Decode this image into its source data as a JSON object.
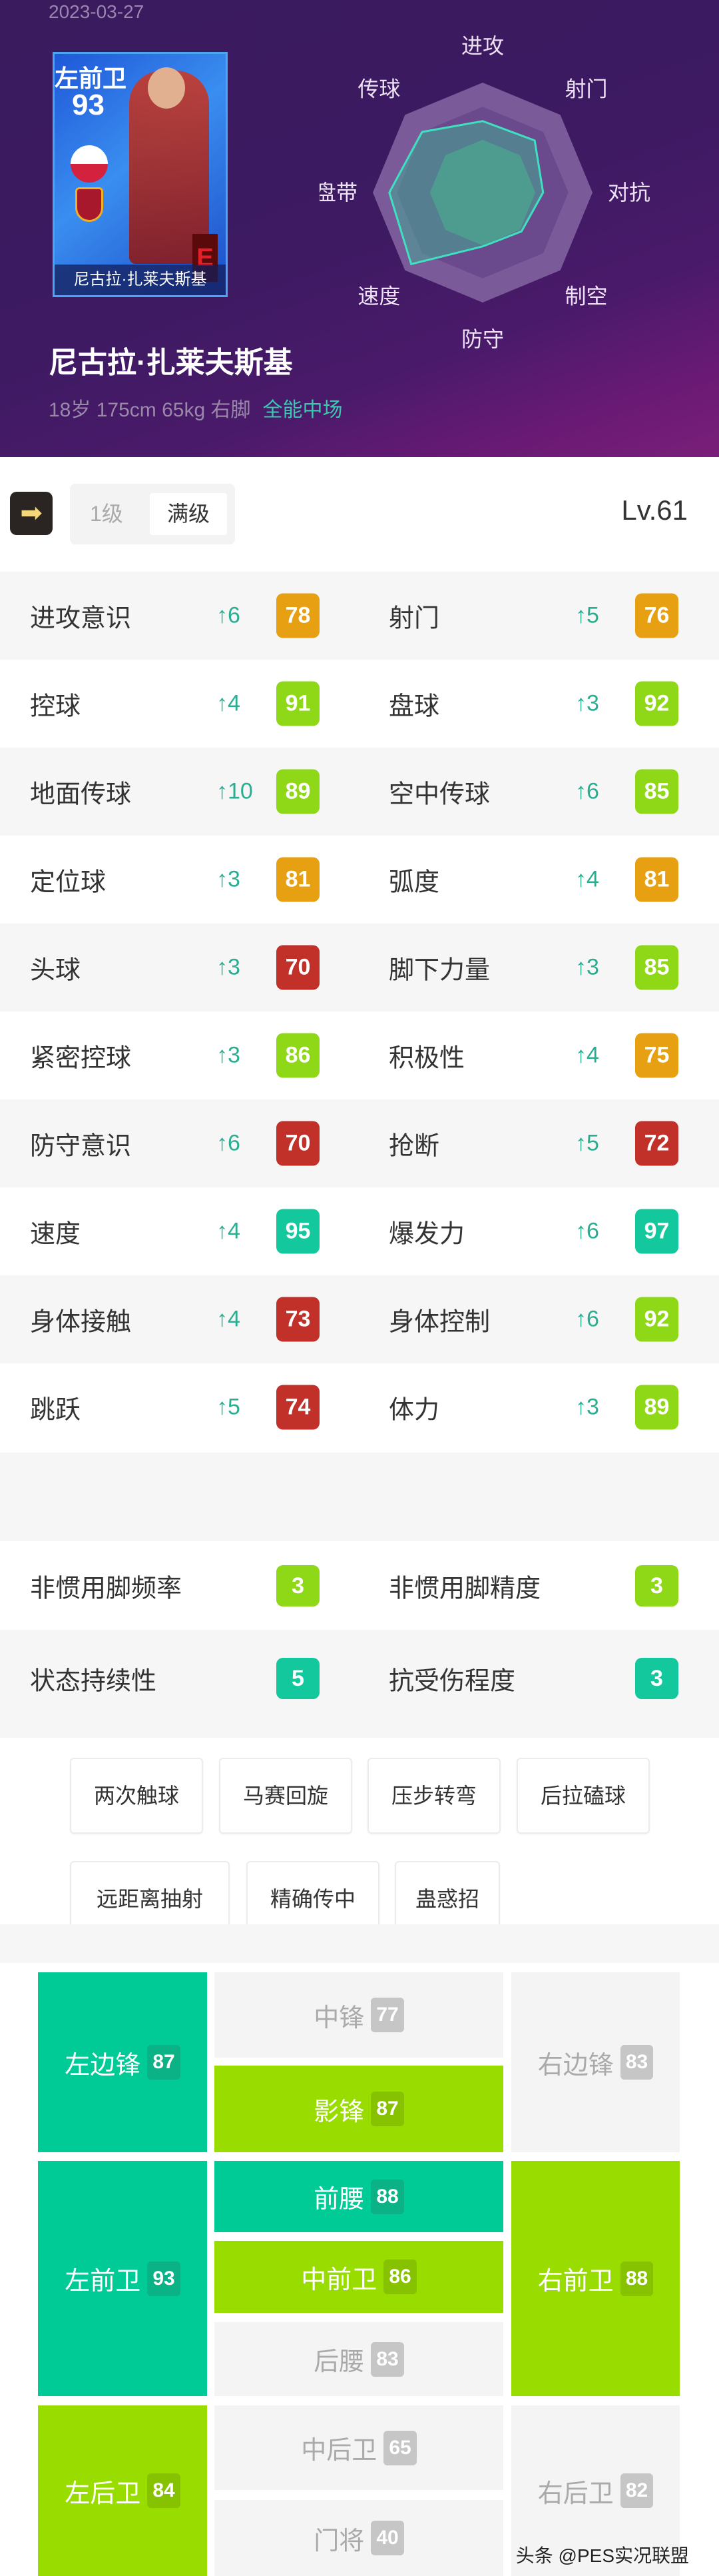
{
  "header": {
    "date": "2023-03-27",
    "card": {
      "position": "左前卫",
      "rating": "93",
      "grade": "E",
      "name": "尼古拉·扎莱夫斯基"
    },
    "player_name": "尼古拉·扎莱夫斯基",
    "info": "18岁 175cm 65kg 右脚",
    "role": "全能中场"
  },
  "chart_data": {
    "type": "radar",
    "axes": [
      "进攻",
      "射门",
      "对抗",
      "制空",
      "防守",
      "速度",
      "盘带",
      "传球"
    ],
    "values": [
      65,
      67,
      55,
      50,
      49,
      92,
      85,
      78
    ],
    "range": [
      0,
      100
    ],
    "colors": {
      "outer": "#7b5a9a",
      "mid": "#6a4a8c",
      "inner": "#5a8a8a",
      "fill": "rgba(70,170,150,0.55)",
      "stroke": "#3ee0c0"
    }
  },
  "toolbar": {
    "level_1": "1级",
    "level_max": "满级",
    "selected": "满级",
    "level": "Lv.61"
  },
  "colors": {
    "orange": "#e6a012",
    "green": "#8fd817",
    "red": "#c2302a",
    "teal": "#14c89e"
  },
  "stats": [
    [
      {
        "label": "进攻意识",
        "delta": "↑6",
        "value": "78",
        "color": "orange"
      },
      {
        "label": "射门",
        "delta": "↑5",
        "value": "76",
        "color": "orange"
      }
    ],
    [
      {
        "label": "控球",
        "delta": "↑4",
        "value": "91",
        "color": "green"
      },
      {
        "label": "盘球",
        "delta": "↑3",
        "value": "92",
        "color": "green"
      }
    ],
    [
      {
        "label": "地面传球",
        "delta": "↑10",
        "value": "89",
        "color": "green"
      },
      {
        "label": "空中传球",
        "delta": "↑6",
        "value": "85",
        "color": "green"
      }
    ],
    [
      {
        "label": "定位球",
        "delta": "↑3",
        "value": "81",
        "color": "orange"
      },
      {
        "label": "弧度",
        "delta": "↑4",
        "value": "81",
        "color": "orange"
      }
    ],
    [
      {
        "label": "头球",
        "delta": "↑3",
        "value": "70",
        "color": "red"
      },
      {
        "label": "脚下力量",
        "delta": "↑3",
        "value": "85",
        "color": "green"
      }
    ],
    [
      {
        "label": "紧密控球",
        "delta": "↑3",
        "value": "86",
        "color": "green"
      },
      {
        "label": "积极性",
        "delta": "↑4",
        "value": "75",
        "color": "orange"
      }
    ],
    [
      {
        "label": "防守意识",
        "delta": "↑6",
        "value": "70",
        "color": "red"
      },
      {
        "label": "抢断",
        "delta": "↑5",
        "value": "72",
        "color": "red"
      }
    ],
    [
      {
        "label": "速度",
        "delta": "↑4",
        "value": "95",
        "color": "teal"
      },
      {
        "label": "爆发力",
        "delta": "↑6",
        "value": "97",
        "color": "teal"
      }
    ],
    [
      {
        "label": "身体接触",
        "delta": "↑4",
        "value": "73",
        "color": "red"
      },
      {
        "label": "身体控制",
        "delta": "↑6",
        "value": "92",
        "color": "green"
      }
    ],
    [
      {
        "label": "跳跃",
        "delta": "↑5",
        "value": "74",
        "color": "red"
      },
      {
        "label": "体力",
        "delta": "↑3",
        "value": "89",
        "color": "green"
      }
    ]
  ],
  "extra_stats": [
    [
      {
        "label": "非惯用脚频率",
        "value": "3",
        "color": "green"
      },
      {
        "label": "非惯用脚精度",
        "value": "3",
        "color": "green"
      }
    ],
    [
      {
        "label": "状态持续性",
        "value": "5",
        "color": "teal"
      },
      {
        "label": "抗受伤程度",
        "value": "3",
        "color": "teal"
      }
    ]
  ],
  "skills": [
    "两次触球",
    "马赛回旋",
    "压步转弯",
    "后拉磕球",
    "远距离抽射",
    "精确传中",
    "蛊惑招"
  ],
  "positions": [
    {
      "label": "左边锋",
      "value": "87",
      "tier": "teal"
    },
    {
      "label": "中锋",
      "value": "77",
      "tier": "none"
    },
    {
      "label": "影锋",
      "value": "87",
      "tier": "green"
    },
    {
      "label": "右边锋",
      "value": "83",
      "tier": "none"
    },
    {
      "label": "左前卫",
      "value": "93",
      "tier": "teal"
    },
    {
      "label": "前腰",
      "value": "88",
      "tier": "teal"
    },
    {
      "label": "中前卫",
      "value": "86",
      "tier": "green"
    },
    {
      "label": "后腰",
      "value": "83",
      "tier": "none"
    },
    {
      "label": "右前卫",
      "value": "88",
      "tier": "green"
    },
    {
      "label": "左后卫",
      "value": "84",
      "tier": "green"
    },
    {
      "label": "中后卫",
      "value": "65",
      "tier": "none"
    },
    {
      "label": "门将",
      "value": "40",
      "tier": "none"
    },
    {
      "label": "右后卫",
      "value": "82",
      "tier": "none"
    }
  ],
  "watermark": "头条 @PES实况联盟"
}
